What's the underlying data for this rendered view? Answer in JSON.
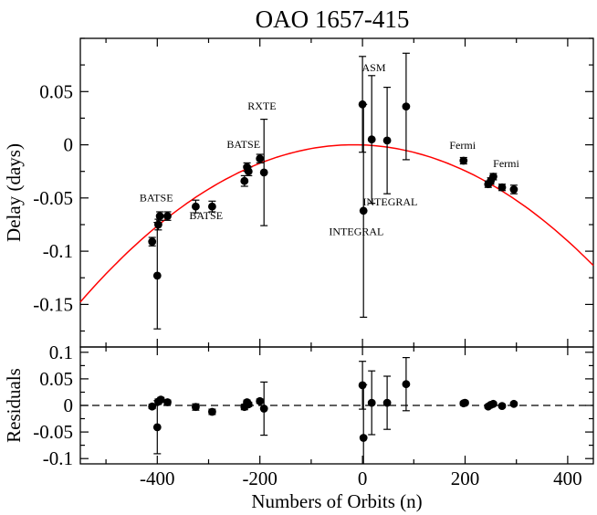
{
  "chart_data": {
    "type": "scatter",
    "title": "OAO 1657-415",
    "xlabel": "Numbers of Orbits (n)",
    "top_panel": {
      "ylabel": "Delay (days)",
      "xlim": [
        -550,
        450
      ],
      "ylim": [
        -0.19,
        0.1
      ],
      "xticks": [
        -400,
        -200,
        0,
        200,
        400
      ],
      "yticks": [
        0.05,
        0,
        -0.05,
        -0.1,
        -0.15
      ],
      "ytick_labels": [
        "0.05",
        "0",
        "-0.05",
        "-0.1",
        "-0.15"
      ],
      "fit_curve": {
        "name": "quadratic fit",
        "color": "#ff0000",
        "vertex_n": -17,
        "vertex_delay": 0.0,
        "curvature": -5.2e-07,
        "samples": 120
      },
      "points": [
        {
          "n": -410,
          "y": -0.091,
          "err": 0.004
        },
        {
          "n": -400,
          "y": -0.123,
          "err": 0.05
        },
        {
          "n": -398,
          "y": -0.075,
          "err": 0.005
        },
        {
          "n": -395,
          "y": -0.067,
          "err": 0.004
        },
        {
          "n": -380,
          "y": -0.067,
          "err": 0.004
        },
        {
          "n": -325,
          "y": -0.058,
          "err": 0.006
        },
        {
          "n": -293,
          "y": -0.058,
          "err": 0.005
        },
        {
          "n": -230,
          "y": -0.034,
          "err": 0.005
        },
        {
          "n": -225,
          "y": -0.021,
          "err": 0.004
        },
        {
          "n": -222,
          "y": -0.025,
          "err": 0.004
        },
        {
          "n": -200,
          "y": -0.013,
          "err": 0.004
        },
        {
          "n": -192,
          "y": -0.026,
          "err": 0.05
        },
        {
          "n": 0,
          "y": 0.038,
          "err": 0.045
        },
        {
          "n": 2,
          "y": -0.062,
          "err": 0.1
        },
        {
          "n": 18,
          "y": 0.005,
          "err": 0.06
        },
        {
          "n": 48,
          "y": 0.004,
          "err": 0.05
        },
        {
          "n": 85,
          "y": 0.036,
          "err": 0.05
        },
        {
          "n": 197,
          "y": -0.015,
          "err": 0.003
        },
        {
          "n": 245,
          "y": -0.037,
          "err": 0.003
        },
        {
          "n": 250,
          "y": -0.034,
          "err": 0.003
        },
        {
          "n": 255,
          "y": -0.03,
          "err": 0.003
        },
        {
          "n": 272,
          "y": -0.04,
          "err": 0.003
        },
        {
          "n": 295,
          "y": -0.042,
          "err": 0.004
        }
      ],
      "annotations": [
        {
          "text": "BATSE",
          "n": -402,
          "y": -0.053
        },
        {
          "text": "BATSE",
          "n": -305,
          "y": -0.07
        },
        {
          "text": "BATSE",
          "n": -232,
          "y": -0.003
        },
        {
          "text": "RXTE",
          "n": -196,
          "y": 0.033
        },
        {
          "text": "ASM",
          "n": 22,
          "y": 0.069
        },
        {
          "text": "INTEGRAL",
          "n": 54,
          "y": -0.057
        },
        {
          "text": "INTEGRAL",
          "n": -12,
          "y": -0.085
        },
        {
          "text": "Fermi",
          "n": 195,
          "y": -0.004
        },
        {
          "text": "Fermi",
          "n": 280,
          "y": -0.021
        }
      ]
    },
    "bottom_panel": {
      "ylabel": "Residuals",
      "xlim": [
        -550,
        450
      ],
      "ylim": [
        -0.11,
        0.11
      ],
      "yticks": [
        0.1,
        0.05,
        0,
        -0.05,
        -0.1
      ],
      "ytick_labels": [
        "0.1",
        "0.05",
        "0",
        "-0.05",
        "-0.1"
      ],
      "zero_line": "dashed",
      "points": [
        {
          "n": -410,
          "y": -0.002,
          "err": 0.004
        },
        {
          "n": -400,
          "y": -0.041,
          "err": 0.05
        },
        {
          "n": -398,
          "y": 0.007,
          "err": 0.005
        },
        {
          "n": -393,
          "y": 0.011,
          "err": 0.004
        },
        {
          "n": -380,
          "y": 0.006,
          "err": 0.004
        },
        {
          "n": -325,
          "y": -0.003,
          "err": 0.006
        },
        {
          "n": -293,
          "y": -0.012,
          "err": 0.005
        },
        {
          "n": -230,
          "y": -0.003,
          "err": 0.005
        },
        {
          "n": -225,
          "y": 0.006,
          "err": 0.004
        },
        {
          "n": -222,
          "y": 0.002,
          "err": 0.004
        },
        {
          "n": -200,
          "y": 0.008,
          "err": 0.004
        },
        {
          "n": -192,
          "y": -0.006,
          "err": 0.05
        },
        {
          "n": 0,
          "y": 0.038,
          "err": 0.045
        },
        {
          "n": 2,
          "y": -0.061,
          "err": 0.1
        },
        {
          "n": 18,
          "y": 0.005,
          "err": 0.06
        },
        {
          "n": 48,
          "y": 0.005,
          "err": 0.05
        },
        {
          "n": 85,
          "y": 0.04,
          "err": 0.05
        },
        {
          "n": 197,
          "y": 0.004,
          "err": 0.003
        },
        {
          "n": 200,
          "y": 0.005,
          "err": 0.003
        },
        {
          "n": 245,
          "y": -0.002,
          "err": 0.003
        },
        {
          "n": 250,
          "y": 0.001,
          "err": 0.003
        },
        {
          "n": 255,
          "y": 0.003,
          "err": 0.003
        },
        {
          "n": 272,
          "y": -0.001,
          "err": 0.003
        },
        {
          "n": 295,
          "y": 0.003,
          "err": 0.003
        }
      ]
    }
  }
}
